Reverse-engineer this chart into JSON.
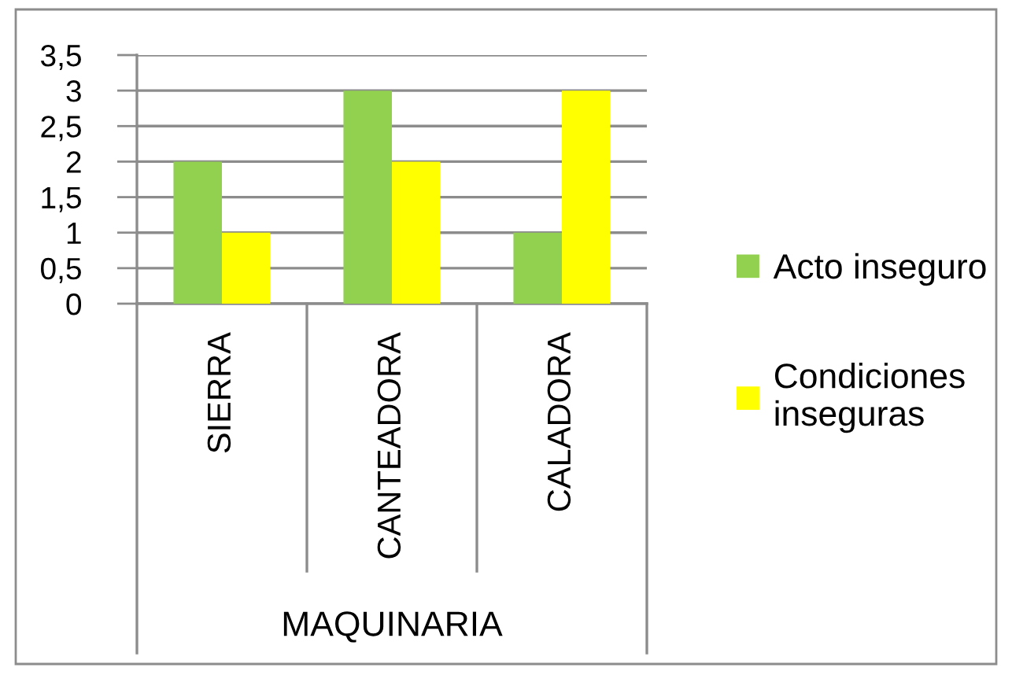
{
  "chart_data": {
    "type": "bar",
    "xlabel": "MAQUINARIA",
    "categories": [
      "SIERRA",
      "CANTEADORA",
      "CALADORA"
    ],
    "series": [
      {
        "name": "Acto inseguro",
        "color": "#92d050",
        "values": [
          2,
          3,
          1
        ]
      },
      {
        "name": "Condiciones inseguras",
        "color": "#ffff00",
        "values": [
          1,
          2,
          3
        ]
      }
    ],
    "ylim": [
      0,
      3.5
    ],
    "yticks": [
      0,
      {
        "value": 0.5,
        "label": "0,5"
      },
      1,
      {
        "value": 1.5,
        "label": "1,5"
      },
      2,
      {
        "value": 2.5,
        "label": "2,5"
      },
      3,
      {
        "value": 3.5,
        "label": "3,5"
      }
    ],
    "grid": "y",
    "legend": "right"
  }
}
